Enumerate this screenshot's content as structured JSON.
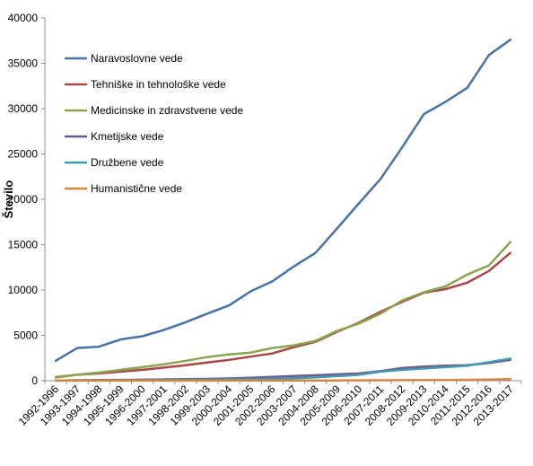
{
  "chart_data": {
    "type": "line",
    "title": "",
    "xlabel": "",
    "ylabel": "Število",
    "ylim": [
      0,
      40000
    ],
    "yticks": [
      0,
      5000,
      10000,
      15000,
      20000,
      25000,
      30000,
      35000,
      40000
    ],
    "grid": false,
    "legend_position": "top-left",
    "categories": [
      "1992-1996",
      "1993-1997",
      "1994-1998",
      "1995-1999",
      "1996-2000",
      "1997-2001",
      "1998-2002",
      "1999-2003",
      "2000-2004",
      "2001-2005",
      "2002-2006",
      "2003-2007",
      "2004-2008",
      "2005-2009",
      "2006-2010",
      "2007-2011",
      "2008-2012",
      "2009-2013",
      "2010-2014",
      "2011-2015",
      "2012-2016",
      "2013-2017"
    ],
    "series": [
      {
        "name": "Naravoslovne vede",
        "color": "#4572A7",
        "values": [
          2200,
          3600,
          3750,
          4550,
          4900,
          5600,
          6450,
          7400,
          8300,
          9850,
          10950,
          12600,
          14100,
          16800,
          19550,
          22250,
          25750,
          29400,
          30750,
          32300,
          35900,
          37600
        ]
      },
      {
        "name": "Tehniške in tehnološke vede",
        "color": "#AA4643",
        "values": [
          400,
          650,
          800,
          1000,
          1200,
          1450,
          1700,
          2000,
          2300,
          2650,
          3000,
          3700,
          4300,
          5400,
          6400,
          7600,
          8700,
          9700,
          10100,
          10800,
          12100,
          14100
        ]
      },
      {
        "name": "Medicinske in zdravstvene vede",
        "color": "#89A54E",
        "values": [
          350,
          650,
          900,
          1200,
          1500,
          1800,
          2200,
          2600,
          2900,
          3100,
          3600,
          3900,
          4400,
          5500,
          6300,
          7400,
          8850,
          9750,
          10400,
          11700,
          12700,
          15300
        ]
      },
      {
        "name": "Kmetijske vede",
        "color": "#71588F",
        "values": [
          30,
          50,
          70,
          90,
          110,
          140,
          170,
          200,
          250,
          320,
          420,
          520,
          600,
          700,
          800,
          1050,
          1400,
          1550,
          1650,
          1700,
          1950,
          2300
        ]
      },
      {
        "name": "Družbene vede",
        "color": "#4198AF",
        "values": [
          20,
          30,
          40,
          50,
          60,
          70,
          90,
          110,
          140,
          180,
          220,
          280,
          380,
          500,
          650,
          1000,
          1200,
          1350,
          1500,
          1650,
          2050,
          2450
        ]
      },
      {
        "name": "Humanistične vede",
        "color": "#DB843D",
        "values": [
          5,
          5,
          5,
          5,
          10,
          10,
          10,
          10,
          15,
          15,
          20,
          20,
          25,
          30,
          40,
          50,
          60,
          70,
          80,
          100,
          130,
          170
        ]
      }
    ]
  }
}
